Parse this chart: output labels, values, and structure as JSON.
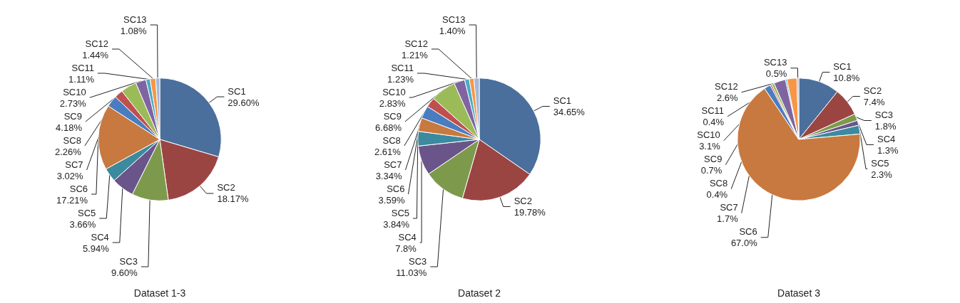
{
  "chart_data": [
    {
      "type": "pie",
      "title": "Dataset 1-3",
      "categories": [
        "SC1",
        "SC2",
        "SC3",
        "SC4",
        "SC5",
        "SC6",
        "SC7",
        "SC8",
        "SC9",
        "SC10",
        "SC11",
        "SC12",
        "SC13"
      ],
      "values": [
        29.6,
        18.17,
        9.6,
        5.94,
        3.66,
        17.21,
        3.02,
        2.26,
        4.18,
        2.73,
        1.11,
        1.44,
        1.08
      ],
      "value_labels": [
        "29.60%",
        "18.17%",
        "9.60%",
        "5.94%",
        "3.66%",
        "17.21%",
        "3.02%",
        "2.26%",
        "4.18%",
        "2.73%",
        "1.11%",
        "1.44%",
        "1.08%"
      ],
      "colors": [
        "#4a6f9c",
        "#9b4543",
        "#7d9a4c",
        "#6a558a",
        "#3b8a9e",
        "#c8793f",
        "#4a7cc0",
        "#c0504d",
        "#9bbb59",
        "#8064a2",
        "#4bacc6",
        "#f79646",
        "#a5b8d8"
      ]
    },
    {
      "type": "pie",
      "title": "Dataset 2",
      "categories": [
        "SC1",
        "SC2",
        "SC3",
        "SC4",
        "SC5",
        "SC6",
        "SC7",
        "SC8",
        "SC9",
        "SC10",
        "SC11",
        "SC12",
        "SC13"
      ],
      "values": [
        34.65,
        19.78,
        11.03,
        7.8,
        3.84,
        3.59,
        3.34,
        2.61,
        6.68,
        2.83,
        1.23,
        1.21,
        1.4
      ],
      "value_labels": [
        "34.65%",
        "19.78%",
        "11.03%",
        "7.8%",
        "3.84%",
        "3.59%",
        "3.34%",
        "2.61%",
        "6.68%",
        "2.83%",
        "1.23%",
        "1.21%",
        "1.40%"
      ],
      "colors": [
        "#4a6f9c",
        "#9b4543",
        "#7d9a4c",
        "#6a558a",
        "#3b8a9e",
        "#c8793f",
        "#4a7cc0",
        "#c0504d",
        "#9bbb59",
        "#8064a2",
        "#4bacc6",
        "#f79646",
        "#a5b8d8"
      ]
    },
    {
      "type": "pie",
      "title": "Dataset 3",
      "categories": [
        "SC1",
        "SC2",
        "SC3",
        "SC4",
        "SC5",
        "SC6",
        "SC7",
        "SC8",
        "SC9",
        "SC10",
        "SC11",
        "SC12",
        "SC13"
      ],
      "values": [
        10.8,
        7.4,
        1.8,
        1.3,
        2.3,
        67.0,
        1.7,
        0.4,
        0.7,
        3.1,
        0.4,
        2.6,
        0.5
      ],
      "value_labels": [
        "10.8%",
        "7.4%",
        "1.8%",
        "1.3%",
        "2.3%",
        "67.0%",
        "1.7%",
        "0.4%",
        "0.7%",
        "3.1%",
        "0.4%",
        "2.6%",
        "0.5%"
      ],
      "colors": [
        "#4a6f9c",
        "#9b4543",
        "#7d9a4c",
        "#6a558a",
        "#3b8a9e",
        "#c8793f",
        "#4a7cc0",
        "#c0504d",
        "#9bbb59",
        "#8064a2",
        "#4bacc6",
        "#f79646",
        "#a5b8d8"
      ]
    }
  ]
}
